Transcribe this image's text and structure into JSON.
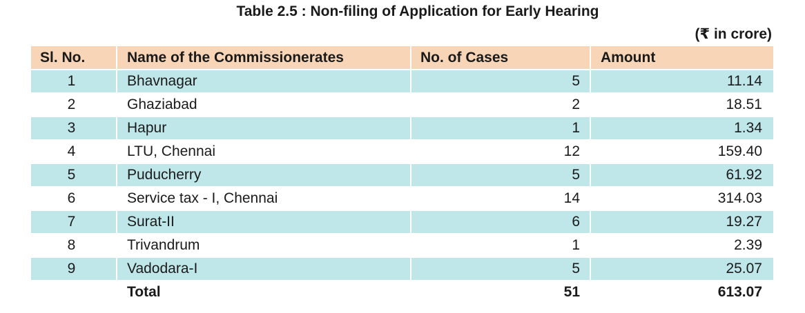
{
  "title": "Table 2.5 : Non-filing of Application for Early Hearing",
  "unit": "(₹  in crore)",
  "headers": {
    "sl": "Sl. No.",
    "name": "Name of the Commissionerates",
    "cases": "No. of Cases",
    "amount": "Amount"
  },
  "rows": [
    {
      "sl": "1",
      "name": "Bhavnagar",
      "cases": "5",
      "amount": "11.14"
    },
    {
      "sl": "2",
      "name": "Ghaziabad",
      "cases": "2",
      "amount": "18.51"
    },
    {
      "sl": "3",
      "name": "Hapur",
      "cases": "1",
      "amount": "1.34"
    },
    {
      "sl": "4",
      "name": "LTU, Chennai",
      "cases": "12",
      "amount": "159.40"
    },
    {
      "sl": "5",
      "name": "Puducherry",
      "cases": "5",
      "amount": "61.92"
    },
    {
      "sl": "6",
      "name": "Service tax - I, Chennai",
      "cases": "14",
      "amount": "314.03"
    },
    {
      "sl": "7",
      "name": "Surat-II",
      "cases": "6",
      "amount": "19.27"
    },
    {
      "sl": "8",
      "name": "Trivandrum",
      "cases": "1",
      "amount": "2.39"
    },
    {
      "sl": "9",
      "name": "Vadodara-I",
      "cases": "5",
      "amount": "25.07"
    }
  ],
  "total": {
    "label": "Total",
    "cases": "51",
    "amount": "613.07"
  },
  "colors": {
    "header_bg": "#f8d5b7",
    "shaded_row_bg": "#bfe6e8"
  }
}
